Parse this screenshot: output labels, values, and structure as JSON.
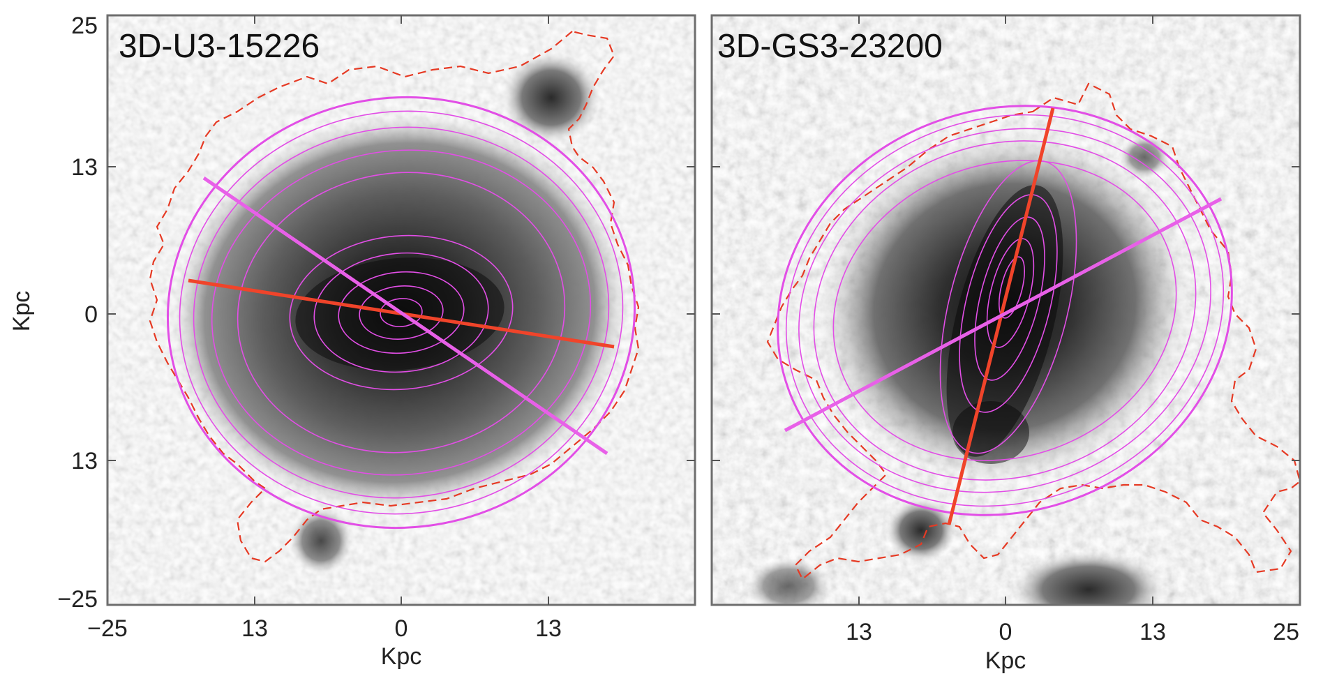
{
  "panels": [
    {
      "title": "3D-U3-15226",
      "xaxis": {
        "label": "Kpc",
        "ticks": [
          "−25",
          "13",
          "0",
          "13"
        ]
      },
      "yaxis": {
        "label": "Kpc",
        "ticks": [
          "25",
          "13",
          "0",
          "13",
          "−25"
        ]
      }
    },
    {
      "title": "3D-GS3-23200",
      "xaxis": {
        "label": "Kpc",
        "ticks": [
          "13",
          "0",
          "13",
          "25"
        ]
      },
      "yaxis": {
        "label": "",
        "ticks": []
      }
    }
  ],
  "colors": {
    "isophote": "#e24ee6",
    "major_axis_line": "#f0442a",
    "minor_axis_line": "#e860e8",
    "contour": "#e63a24"
  }
}
